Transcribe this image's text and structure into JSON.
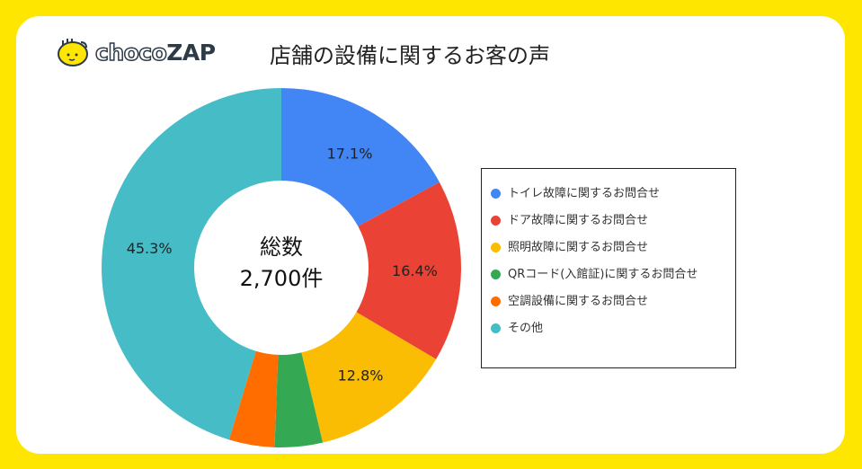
{
  "logo": {
    "text_light": "choco",
    "text_bold": "ZAP"
  },
  "chart_data": {
    "type": "pie",
    "donut": true,
    "title": "店舗の設備に関するお客の声",
    "center_label": [
      "総数",
      "2,700件"
    ],
    "categories": [
      "トイレ故障に関するお問合せ",
      "ドア故障に関するお問合せ",
      "照明故障に関するお問合せ",
      "QRコード(入館証)に関するお問合せ",
      "空調設備に関するお問合せ",
      "その他"
    ],
    "values": [
      17.1,
      16.4,
      12.8,
      4.3,
      4.1,
      45.3
    ],
    "data_labels": [
      "17.1%",
      "16.4%",
      "12.8%",
      "",
      "",
      "45.3%"
    ],
    "colors": [
      "#4285F4",
      "#EA4335",
      "#FBBC04",
      "#34A853",
      "#FF6D01",
      "#46BDC6"
    ],
    "legend_position": "right"
  }
}
